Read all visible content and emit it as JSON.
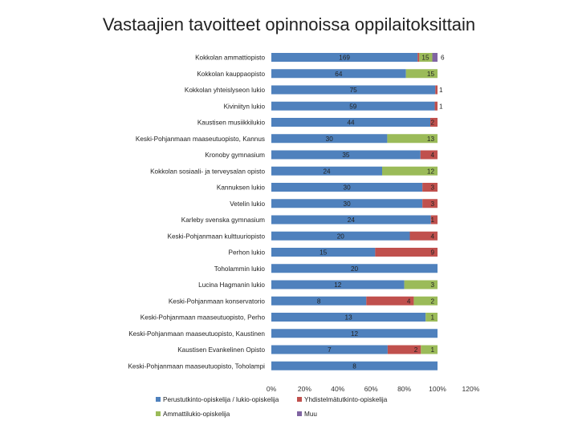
{
  "chart_data": {
    "type": "bar",
    "orientation": "horizontal",
    "stacked": "percent",
    "title": "Vastaajien tavoitteet opinnoissa oppilaitoksittain",
    "xlabel": "",
    "ylabel": "",
    "xlim": [
      0,
      120
    ],
    "xticks": [
      "0%",
      "20%",
      "40%",
      "60%",
      "80%",
      "100%",
      "120%"
    ],
    "legend_position": "bottom",
    "categories": [
      "Kokkolan ammattiopisto",
      "Kokkolan kauppaopisto",
      "Kokkolan yhteislyseon lukio",
      "Kiviniityn lukio",
      "Kaustisen musiikkilukio",
      "Keski-Pohjanmaan maaseutuopisto, Kannus",
      "Kronoby gymnasium",
      "Kokkolan sosiaali- ja terveysalan opisto",
      "Kannuksen lukio",
      "Vetelin lukio",
      "Karleby svenska gymnasium",
      "Keski-Pohjanmaan kulttuuriopisto",
      "Perhon lukio",
      "Toholammin lukio",
      "Lucina Hagmanin lukio",
      "Keski-Pohjanmaan konservatorio",
      "Keski-Pohjanmaan maaseutuopisto, Perho",
      "Keski-Pohjanmaan maaseutuopisto, Kaustinen",
      "Kaustisen Evankelinen Opisto",
      "Keski-Pohjanmaan maaseutuopisto, Toholampi"
    ],
    "series": [
      {
        "name": "Perustutkinto-opiskelija / lukio-opiskelija",
        "color": "#4f81bd",
        "values": [
          169,
          64,
          75,
          59,
          44,
          30,
          35,
          24,
          30,
          30,
          24,
          20,
          15,
          20,
          12,
          8,
          13,
          12,
          7,
          8
        ]
      },
      {
        "name": "Yhdistelmätutkinto-opiskelija",
        "color": "#c0504d",
        "values": [
          2,
          0,
          1,
          1,
          2,
          0,
          4,
          0,
          3,
          3,
          1,
          4,
          9,
          0,
          0,
          4,
          0,
          0,
          2,
          0
        ]
      },
      {
        "name": "Ammattilukio-opiskelija",
        "color": "#9bbb59",
        "values": [
          15,
          15,
          0,
          0,
          0,
          13,
          0,
          12,
          0,
          0,
          0,
          0,
          0,
          0,
          3,
          2,
          1,
          0,
          1,
          0
        ]
      },
      {
        "name": "Muu",
        "color": "#8064a2",
        "values": [
          6,
          0,
          0,
          0,
          0,
          0,
          0,
          0,
          0,
          0,
          0,
          0,
          0,
          0,
          0,
          0,
          0,
          0,
          0,
          0
        ]
      }
    ],
    "value_labels": [
      [
        "169",
        "",
        "15",
        "6"
      ],
      [
        "64",
        "",
        "15",
        ""
      ],
      [
        "75",
        "1",
        "",
        ""
      ],
      [
        "59",
        "1",
        "",
        ""
      ],
      [
        "44",
        "2",
        "",
        ""
      ],
      [
        "30",
        "",
        "13",
        ""
      ],
      [
        "35",
        "4",
        "",
        ""
      ],
      [
        "24",
        "",
        "12",
        ""
      ],
      [
        "30",
        "3",
        "",
        ""
      ],
      [
        "30",
        "3",
        "",
        ""
      ],
      [
        "24",
        "1",
        "",
        ""
      ],
      [
        "20",
        "4",
        "",
        ""
      ],
      [
        "15",
        "9",
        "",
        ""
      ],
      [
        "20",
        "",
        "",
        ""
      ],
      [
        "12",
        "",
        "3",
        ""
      ],
      [
        "8",
        "4",
        "2",
        ""
      ],
      [
        "13",
        "",
        "1",
        ""
      ],
      [
        "12",
        "",
        "",
        ""
      ],
      [
        "7",
        "2",
        "1",
        ""
      ],
      [
        "8",
        "",
        "",
        ""
      ]
    ]
  }
}
